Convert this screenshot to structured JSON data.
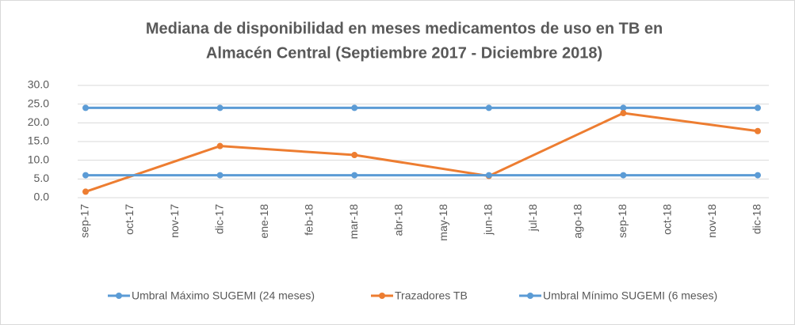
{
  "chart_data": {
    "type": "line",
    "title": [
      "Mediana de disponibilidad en meses medicamentos de uso en TB en",
      "Almacén Central (Septiembre 2017 - Diciembre 2018)"
    ],
    "categories": [
      "sep-17",
      "oct-17",
      "nov-17",
      "dic-17",
      "ene-18",
      "feb-18",
      "mar-18",
      "abr-18",
      "may-18",
      "jun-18",
      "jul-18",
      "ago-18",
      "sep-18",
      "oct-18",
      "nov-18",
      "dic-18"
    ],
    "series": [
      {
        "name": "Umbral Máximo SUGEMI (24 meses)",
        "color": "#5b9bd5",
        "values": [
          24,
          null,
          null,
          24,
          null,
          null,
          24,
          null,
          null,
          24,
          null,
          null,
          24,
          null,
          null,
          24
        ]
      },
      {
        "name": "Trazadores TB",
        "color": "#ed7d31",
        "values": [
          1.6,
          null,
          null,
          13.8,
          null,
          null,
          11.4,
          null,
          null,
          5.8,
          null,
          null,
          22.6,
          null,
          null,
          17.8
        ]
      },
      {
        "name": "Umbral Mínimo SUGEMI (6 meses)",
        "color": "#5b9bd5",
        "values": [
          6,
          null,
          null,
          6,
          null,
          null,
          6,
          null,
          null,
          6,
          null,
          null,
          6,
          null,
          null,
          6
        ]
      }
    ],
    "connect_gaps": true,
    "ylim": [
      0,
      30
    ],
    "yticks": [
      {
        "value": 0,
        "label": "0.0"
      },
      {
        "value": 5,
        "label": "5.0"
      },
      {
        "value": 10,
        "label": "10.0"
      },
      {
        "value": 15,
        "label": "15.0"
      },
      {
        "value": 20,
        "label": "20.0"
      },
      {
        "value": 25,
        "label": "25.0"
      },
      {
        "value": 30,
        "label": "30.0"
      }
    ],
    "grid": true,
    "legend": "bottom"
  }
}
